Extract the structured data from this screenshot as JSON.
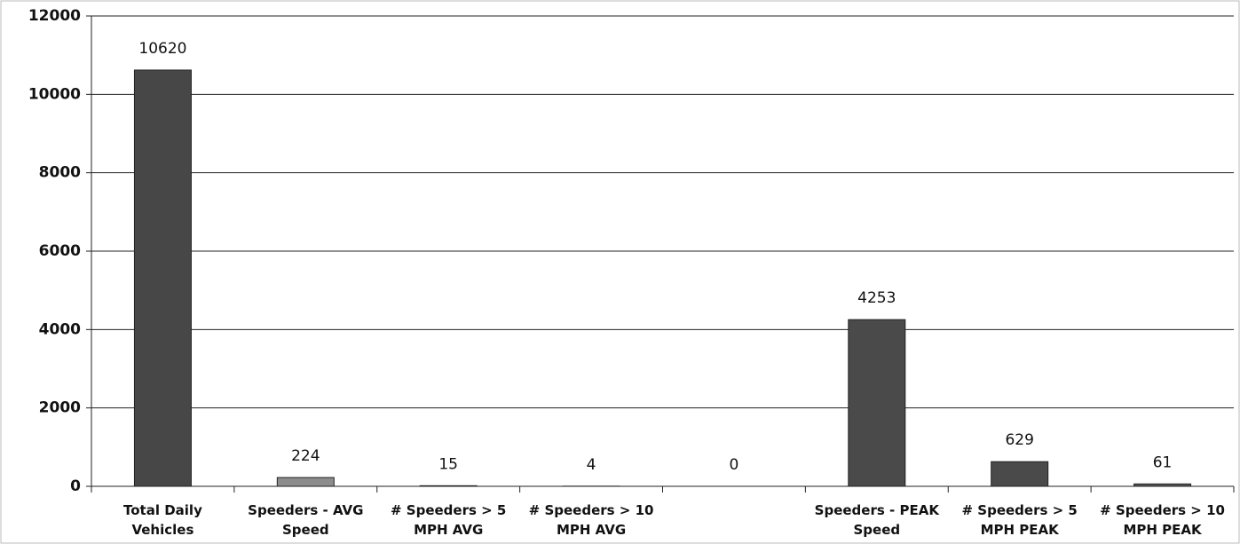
{
  "chart_data": {
    "type": "bar",
    "categories": [
      "Total Daily Vehicles",
      "Speeders - AVG Speed",
      "# Speeders > 5 MPH AVG",
      "# Speeders > 10 MPH AVG",
      null,
      "Speeders - PEAK Speed",
      "# Speeders > 5 MPH PEAK",
      "# Speeders > 10 MPH PEAK"
    ],
    "values": [
      10620,
      224,
      15,
      4,
      0,
      4253,
      629,
      61
    ],
    "colors": [
      "#474747",
      "#8c8c8c",
      "#474747",
      "#474747",
      "#474747",
      "#4a4a4a",
      "#4a4a4a",
      "#555555"
    ],
    "ylim": [
      0,
      12000
    ],
    "yticks": [
      0,
      2000,
      4000,
      6000,
      8000,
      10000,
      12000
    ],
    "grid": true
  }
}
